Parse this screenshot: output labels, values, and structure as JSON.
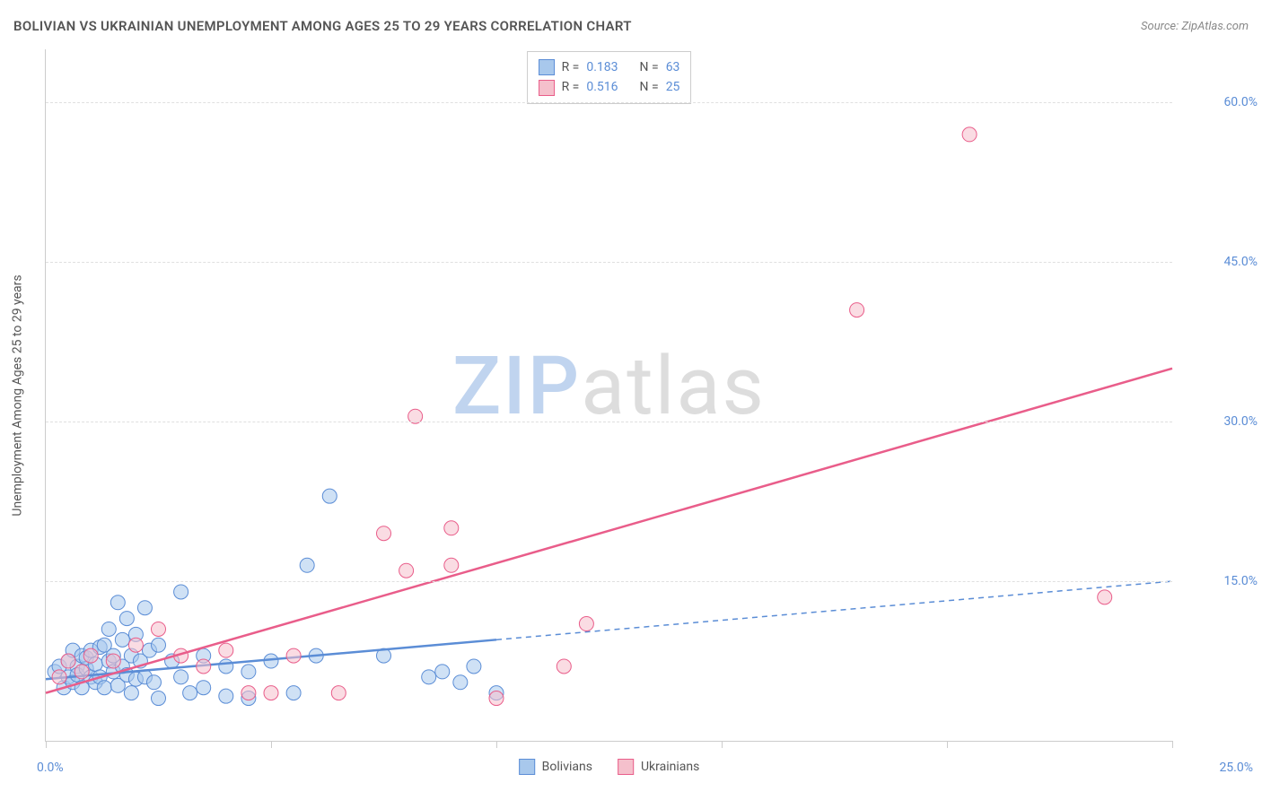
{
  "title": "BOLIVIAN VS UKRAINIAN UNEMPLOYMENT AMONG AGES 25 TO 29 YEARS CORRELATION CHART",
  "source_label": "Source: ",
  "source_name": "ZipAtlas.com",
  "y_axis_label": "Unemployment Among Ages 25 to 29 years",
  "watermark": {
    "part1": "ZIP",
    "part2": "atlas"
  },
  "chart": {
    "type": "scatter",
    "xlim": [
      0,
      25
    ],
    "ylim": [
      0,
      65
    ],
    "y_ticks": [
      15,
      30,
      45,
      60
    ],
    "y_tick_labels": [
      "15.0%",
      "30.0%",
      "45.0%",
      "60.0%"
    ],
    "x_tick_positions": [
      0,
      5,
      10,
      15,
      20,
      25
    ],
    "x_origin_label": "0.0%",
    "x_max_label": "25.0%",
    "grid_color": "#e0e0e0",
    "axis_color": "#cccccc",
    "background": "#ffffff",
    "point_radius": 8,
    "point_opacity": 0.55,
    "series": [
      {
        "name": "Bolivians",
        "color_fill": "#a8c8ec",
        "color_stroke": "#5b8dd6",
        "r_label": "R = ",
        "r_value": "0.183",
        "n_label": "N = ",
        "n_value": "63",
        "trend": {
          "x1": 0,
          "y1": 5.8,
          "x2": 10,
          "y2": 9.5,
          "dash_to_x": 25,
          "dash_to_y": 15.0,
          "width": 2.5
        },
        "points": [
          [
            0.2,
            6.5
          ],
          [
            0.3,
            7.0
          ],
          [
            0.4,
            5.0
          ],
          [
            0.5,
            7.5
          ],
          [
            0.5,
            6.0
          ],
          [
            0.6,
            8.5
          ],
          [
            0.6,
            5.5
          ],
          [
            0.7,
            7.0
          ],
          [
            0.7,
            6.2
          ],
          [
            0.8,
            8.0
          ],
          [
            0.8,
            5.0
          ],
          [
            0.9,
            6.8
          ],
          [
            0.9,
            7.8
          ],
          [
            1.0,
            6.0
          ],
          [
            1.0,
            8.5
          ],
          [
            1.1,
            5.5
          ],
          [
            1.1,
            7.2
          ],
          [
            1.2,
            8.8
          ],
          [
            1.2,
            6.0
          ],
          [
            1.3,
            9.0
          ],
          [
            1.3,
            5.0
          ],
          [
            1.4,
            7.5
          ],
          [
            1.4,
            10.5
          ],
          [
            1.5,
            6.5
          ],
          [
            1.5,
            8.0
          ],
          [
            1.6,
            13.0
          ],
          [
            1.6,
            5.2
          ],
          [
            1.7,
            9.5
          ],
          [
            1.7,
            7.0
          ],
          [
            1.8,
            6.2
          ],
          [
            1.8,
            11.5
          ],
          [
            1.9,
            4.5
          ],
          [
            1.9,
            8.0
          ],
          [
            2.0,
            10.0
          ],
          [
            2.0,
            5.8
          ],
          [
            2.1,
            7.5
          ],
          [
            2.2,
            6.0
          ],
          [
            2.2,
            12.5
          ],
          [
            2.3,
            8.5
          ],
          [
            2.4,
            5.5
          ],
          [
            2.5,
            4.0
          ],
          [
            2.5,
            9.0
          ],
          [
            2.8,
            7.5
          ],
          [
            3.0,
            14.0
          ],
          [
            3.0,
            6.0
          ],
          [
            3.2,
            4.5
          ],
          [
            3.5,
            8.0
          ],
          [
            3.5,
            5.0
          ],
          [
            4.0,
            7.0
          ],
          [
            4.0,
            4.2
          ],
          [
            4.5,
            6.5
          ],
          [
            4.5,
            4.0
          ],
          [
            5.0,
            7.5
          ],
          [
            5.5,
            4.5
          ],
          [
            5.8,
            16.5
          ],
          [
            6.0,
            8.0
          ],
          [
            6.3,
            23.0
          ],
          [
            7.5,
            8.0
          ],
          [
            8.5,
            6.0
          ],
          [
            8.8,
            6.5
          ],
          [
            9.2,
            5.5
          ],
          [
            9.5,
            7.0
          ],
          [
            10.0,
            4.5
          ]
        ]
      },
      {
        "name": "Ukrainians",
        "color_fill": "#f5c0cc",
        "color_stroke": "#e95d8a",
        "r_label": "R = ",
        "r_value": "0.516",
        "n_label": "N = ",
        "n_value": "25",
        "trend": {
          "x1": 0,
          "y1": 4.5,
          "x2": 25,
          "y2": 35.0,
          "width": 2.5
        },
        "points": [
          [
            0.3,
            6.0
          ],
          [
            0.5,
            7.5
          ],
          [
            0.8,
            6.5
          ],
          [
            1.0,
            8.0
          ],
          [
            1.5,
            7.5
          ],
          [
            2.0,
            9.0
          ],
          [
            2.5,
            10.5
          ],
          [
            3.0,
            8.0
          ],
          [
            3.5,
            7.0
          ],
          [
            4.0,
            8.5
          ],
          [
            4.5,
            4.5
          ],
          [
            5.0,
            4.5
          ],
          [
            5.5,
            8.0
          ],
          [
            6.5,
            4.5
          ],
          [
            7.5,
            19.5
          ],
          [
            8.0,
            16.0
          ],
          [
            8.2,
            30.5
          ],
          [
            9.0,
            20.0
          ],
          [
            9.0,
            16.5
          ],
          [
            10.0,
            4.0
          ],
          [
            11.5,
            7.0
          ],
          [
            12.0,
            11.0
          ],
          [
            18.0,
            40.5
          ],
          [
            20.5,
            57.0
          ],
          [
            23.5,
            13.5
          ]
        ]
      }
    ]
  },
  "legend_bottom": [
    {
      "label": "Bolivians",
      "fill": "#a8c8ec",
      "stroke": "#5b8dd6"
    },
    {
      "label": "Ukrainians",
      "fill": "#f5c0cc",
      "stroke": "#e95d8a"
    }
  ]
}
